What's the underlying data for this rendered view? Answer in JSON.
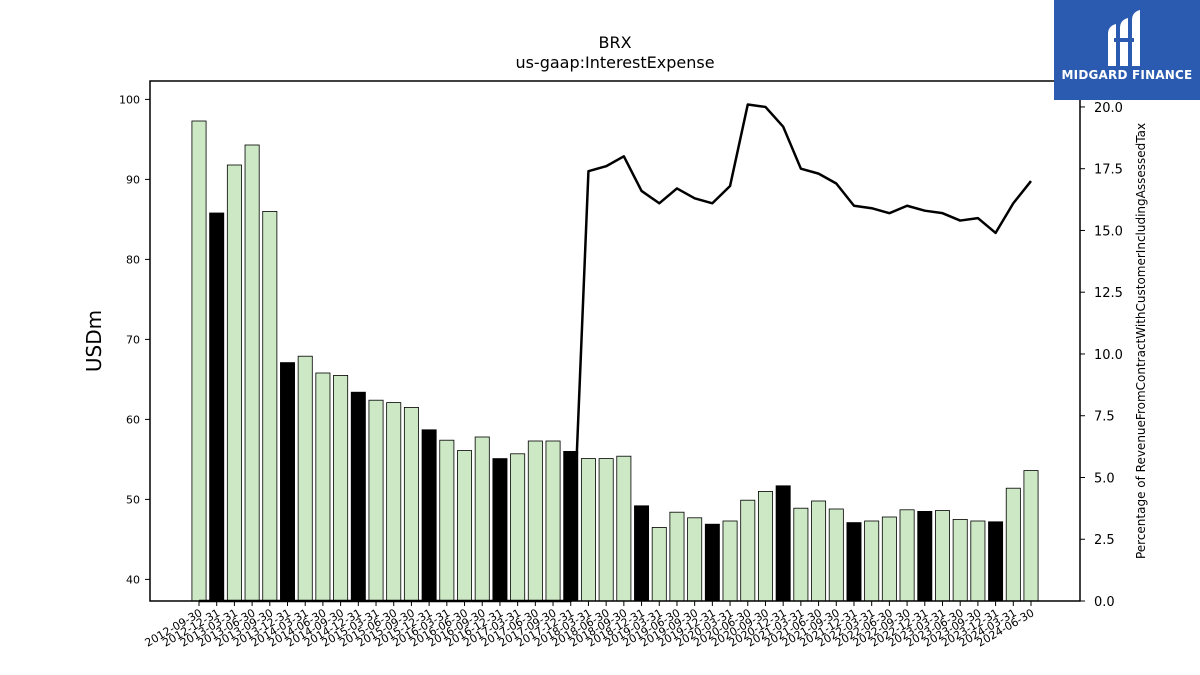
{
  "chart_data": {
    "type": "bar",
    "title": "BRX",
    "subtitle": "us-gaap:InterestExpense",
    "ylabel": "USDm",
    "y2label": "Percentage of RevenueFromContractWithCustomerIncludingAssessedTax",
    "ylim": [
      37.3,
      102.3
    ],
    "y2lim": [
      0,
      21.05
    ],
    "yticks": [
      40,
      50,
      60,
      70,
      80,
      90,
      100
    ],
    "y2ticks": [
      "0.0",
      "2.5",
      "5.0",
      "7.5",
      "10.0",
      "12.5",
      "15.0",
      "17.5",
      "20.0"
    ],
    "categories": [
      "2012-09-30",
      "2012-12-31",
      "2013-03-31",
      "2013-06-30",
      "2013-09-30",
      "2013-12-31",
      "2014-03-31",
      "2014-06-30",
      "2014-09-30",
      "2014-12-31",
      "2015-03-31",
      "2015-06-30",
      "2015-09-30",
      "2015-12-31",
      "2016-03-31",
      "2016-06-30",
      "2016-09-30",
      "2016-12-31",
      "2017-03-31",
      "2017-06-30",
      "2017-09-30",
      "2017-12-31",
      "2018-03-31",
      "2018-06-30",
      "2018-09-30",
      "2018-12-31",
      "2019-03-31",
      "2019-06-30",
      "2019-09-30",
      "2019-12-31",
      "2020-03-31",
      "2020-06-30",
      "2020-09-30",
      "2020-12-31",
      "2021-03-31",
      "2021-06-30",
      "2021-09-30",
      "2021-12-31",
      "2022-03-31",
      "2022-06-30",
      "2022-09-30",
      "2022-12-31",
      "2023-03-31",
      "2023-06-30",
      "2023-09-30",
      "2023-12-31",
      "2024-03-31",
      "2024-06-30"
    ],
    "series": [
      {
        "values": [
          97.3,
          85.8,
          91.8,
          94.3,
          86.0,
          67.1,
          67.9,
          65.8,
          65.5,
          63.4,
          62.4,
          62.1,
          61.5,
          58.7,
          57.4,
          56.1,
          57.8,
          55.1,
          55.7,
          57.3,
          57.3,
          56.0,
          55.1,
          55.1,
          55.4,
          49.2,
          46.5,
          48.4,
          47.7,
          46.9,
          47.3,
          49.9,
          51.0,
          51.7,
          48.9,
          49.8,
          48.8,
          47.1,
          47.3,
          47.8,
          48.7,
          48.5,
          48.6,
          47.5,
          47.3,
          47.2,
          51.4,
          53.6
        ],
        "highlighted": [
          false,
          true,
          false,
          false,
          false,
          true,
          false,
          false,
          false,
          true,
          false,
          false,
          false,
          true,
          false,
          false,
          false,
          true,
          false,
          false,
          false,
          true,
          false,
          false,
          false,
          true,
          false,
          false,
          false,
          true,
          false,
          false,
          false,
          true,
          false,
          false,
          false,
          true,
          false,
          false,
          false,
          true,
          false,
          false,
          false,
          true,
          false,
          false
        ],
        "colors": {
          "normal": "#cce8c4",
          "highlight": "#000000",
          "edge": "#000000"
        }
      },
      {
        "type": "line",
        "axis": "right",
        "values": [
          0,
          0,
          0,
          0,
          0,
          0,
          0,
          0,
          0,
          0,
          0,
          0,
          0,
          0,
          0,
          0,
          0,
          0,
          0,
          0,
          0,
          0,
          17.4,
          17.6,
          18.0,
          16.6,
          16.1,
          16.7,
          16.3,
          16.1,
          16.8,
          20.1,
          20.0,
          19.2,
          17.5,
          17.3,
          16.9,
          16.0,
          15.9,
          15.7,
          16.0,
          15.8,
          15.7,
          15.4,
          15.5,
          14.9,
          16.1,
          17.0
        ],
        "color": "#000000"
      }
    ],
    "grid": false,
    "legend": "none"
  },
  "branding": {
    "logo_text": "MIDGARD FINANCE",
    "logo_icon": "midgard-bars-icon",
    "logo_color": "#2a5bb0"
  }
}
